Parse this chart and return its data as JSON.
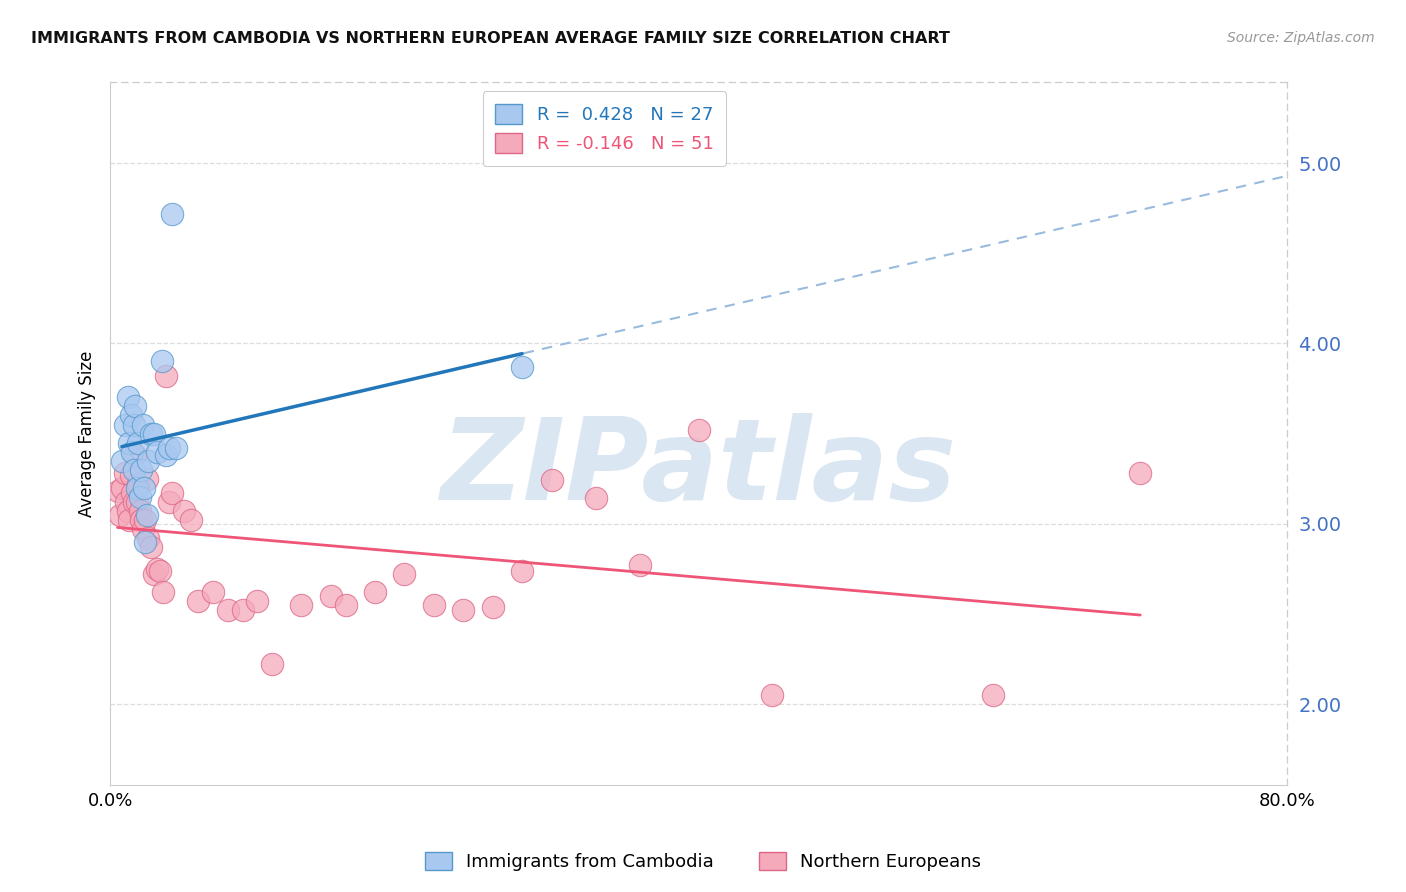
{
  "title": "IMMIGRANTS FROM CAMBODIA VS NORTHERN EUROPEAN AVERAGE FAMILY SIZE CORRELATION CHART",
  "source": "Source: ZipAtlas.com",
  "ylabel": "Average Family Size",
  "yticks": [
    2.0,
    3.0,
    4.0,
    5.0
  ],
  "xlim": [
    0.0,
    0.8
  ],
  "ylim": [
    1.55,
    5.45
  ],
  "cambodia_label": "Immigrants from Cambodia",
  "northern_label": "Northern Europeans",
  "cambodia_R": "0.428",
  "cambodia_N": "27",
  "northern_R": "-0.146",
  "northern_N": "51",
  "cambodia_dot_color": "#A8C8F0",
  "northern_dot_color": "#F5AABB",
  "cambodia_edge_color": "#5599CC",
  "northern_edge_color": "#DD6688",
  "cambodia_line_color": "#2277BB",
  "northern_line_color": "#EE5577",
  "dashed_line_color": "#99BBDD",
  "bg_color": "#FFFFFF",
  "watermark_text": "ZIPatlas",
  "watermark_color": "#BDD4E8",
  "grid_color": "#DDDDDD",
  "ytick_color": "#4472C4",
  "cambodia_x": [
    0.008,
    0.01,
    0.012,
    0.013,
    0.014,
    0.015,
    0.016,
    0.016,
    0.017,
    0.018,
    0.019,
    0.02,
    0.021,
    0.022,
    0.023,
    0.024,
    0.025,
    0.026,
    0.028,
    0.03,
    0.032,
    0.035,
    0.038,
    0.04,
    0.042,
    0.045,
    0.28
  ],
  "cambodia_y": [
    3.35,
    3.55,
    3.7,
    3.45,
    3.6,
    3.4,
    3.55,
    3.3,
    3.65,
    3.2,
    3.45,
    3.15,
    3.3,
    3.55,
    3.2,
    2.9,
    3.05,
    3.35,
    3.5,
    3.5,
    3.4,
    3.9,
    3.38,
    3.42,
    4.72,
    3.42,
    3.87
  ],
  "northern_x": [
    0.005,
    0.007,
    0.008,
    0.01,
    0.011,
    0.012,
    0.013,
    0.014,
    0.015,
    0.016,
    0.017,
    0.018,
    0.019,
    0.02,
    0.021,
    0.022,
    0.024,
    0.025,
    0.026,
    0.028,
    0.03,
    0.032,
    0.034,
    0.036,
    0.038,
    0.04,
    0.042,
    0.05,
    0.055,
    0.06,
    0.07,
    0.08,
    0.09,
    0.1,
    0.11,
    0.13,
    0.15,
    0.16,
    0.18,
    0.2,
    0.22,
    0.24,
    0.26,
    0.28,
    0.3,
    0.33,
    0.36,
    0.4,
    0.45,
    0.6,
    0.7
  ],
  "northern_y": [
    3.18,
    3.05,
    3.2,
    3.28,
    3.12,
    3.07,
    3.02,
    3.27,
    3.17,
    3.12,
    3.38,
    3.12,
    3.22,
    3.07,
    3.02,
    2.97,
    3.02,
    3.25,
    2.92,
    2.87,
    2.72,
    2.75,
    2.74,
    2.62,
    3.82,
    3.12,
    3.17,
    3.07,
    3.02,
    2.57,
    2.62,
    2.52,
    2.52,
    2.57,
    2.22,
    2.55,
    2.6,
    2.55,
    2.62,
    2.72,
    2.55,
    2.52,
    2.54,
    2.74,
    3.24,
    3.14,
    2.77,
    3.52,
    2.05,
    2.05,
    3.28
  ]
}
